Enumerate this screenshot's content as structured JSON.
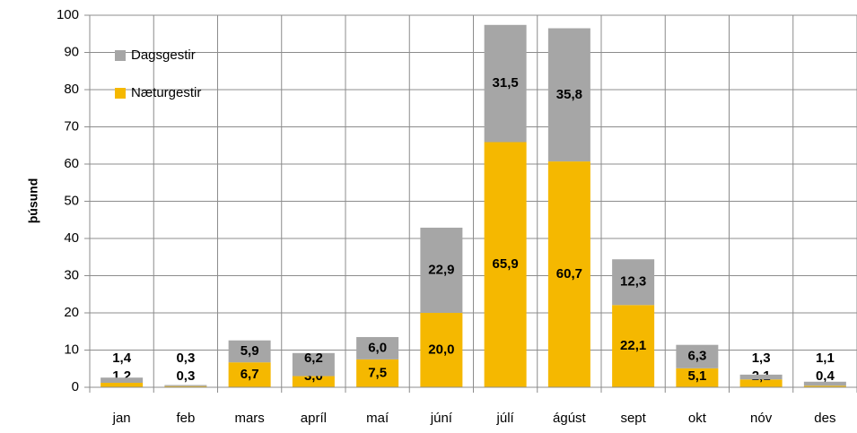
{
  "chart_data": {
    "type": "stacked_bar",
    "y_label": "þúsund",
    "categories": [
      "jan",
      "feb",
      "mars",
      "apríl",
      "maí",
      "júní",
      "júlí",
      "ágúst",
      "sept",
      "okt",
      "nóv",
      "des"
    ],
    "series": [
      {
        "name": "Næturgestir",
        "color": "#f5b800",
        "values": [
          1.2,
          0.3,
          6.7,
          3.0,
          7.5,
          20.0,
          65.9,
          60.7,
          22.1,
          5.1,
          2.1,
          0.4
        ],
        "value_labels": [
          "1,2",
          "0,3",
          "6,7",
          "3,0",
          "7,5",
          "20,0",
          "65,9",
          "60,7",
          "22,1",
          "5,1",
          "2,1",
          "0,4"
        ]
      },
      {
        "name": "Dagsgestir",
        "color": "#a6a6a6",
        "values": [
          1.4,
          0.3,
          5.9,
          6.2,
          6.0,
          22.9,
          31.5,
          35.8,
          12.3,
          6.3,
          1.3,
          1.1
        ],
        "value_labels": [
          "1,4",
          "0,3",
          "5,9",
          "6,2",
          "6,0",
          "22,9",
          "31,5",
          "35,8",
          "12,3",
          "6,3",
          "1,3",
          "1,1"
        ]
      }
    ],
    "ylim": [
      0,
      100
    ],
    "yticks": [
      0,
      10,
      20,
      30,
      40,
      50,
      60,
      70,
      80,
      90,
      100
    ],
    "grid": true,
    "legend": "top-left"
  }
}
